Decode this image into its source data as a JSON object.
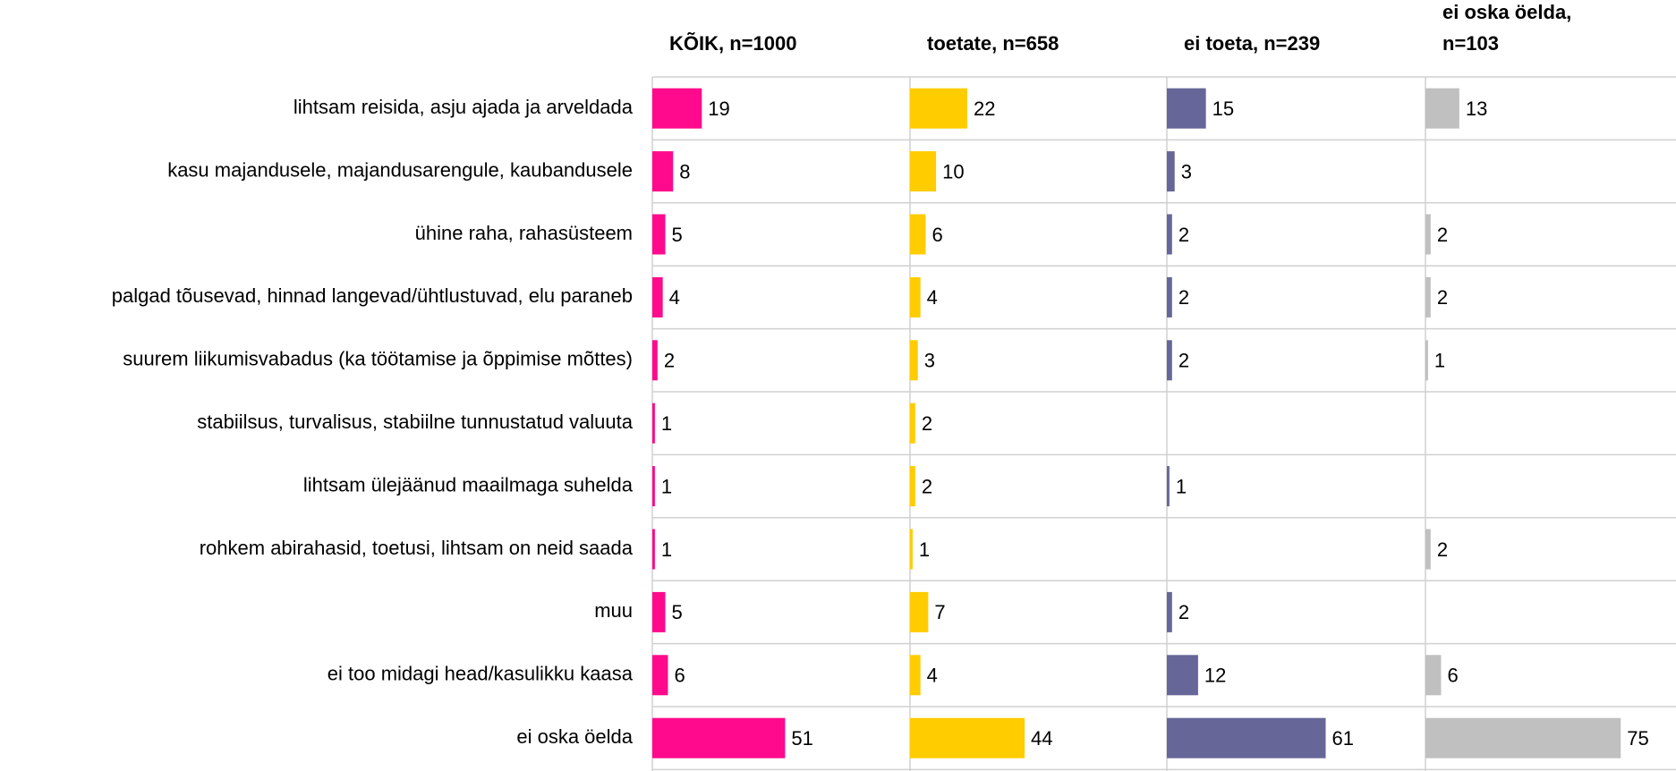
{
  "chart_data": {
    "type": "bar",
    "orientation": "horizontal",
    "categories": [
      "lihtsam reisida, asju ajada ja arveldada",
      "kasu majandusele, majandusarengule, kaubandusele",
      "ühine raha, rahasüsteem",
      "palgad tõusevad, hinnad langevad/ühtlustuvad, elu paraneb",
      "suurem liikumisvabadus (ka töötamise ja õppimise mõttes)",
      "stabiilsus, turvalisus, stabiilne tunnustatud valuuta",
      "lihtsam ülejäänud maailmaga suhelda",
      "rohkem abirahasid, toetusi, lihtsam on neid saada",
      "muu",
      "ei too midagi head/kasulikku kaasa",
      "ei oska öelda"
    ],
    "series": [
      {
        "name": "KÕIK, n=1000",
        "color": "#ff0a8c",
        "values": [
          19,
          8,
          5,
          4,
          2,
          1,
          1,
          1,
          5,
          6,
          51
        ]
      },
      {
        "name": "toetate, n=658",
        "color": "#ffcc00",
        "values": [
          22,
          10,
          6,
          4,
          3,
          2,
          2,
          1,
          7,
          4,
          44
        ]
      },
      {
        "name": "ei toeta, n=239",
        "color": "#666699",
        "values": [
          15,
          3,
          2,
          2,
          2,
          null,
          1,
          null,
          2,
          12,
          61
        ]
      },
      {
        "name": "ei oska öelda, n=103",
        "color": "#c0c0c0",
        "values": [
          13,
          null,
          2,
          2,
          1,
          null,
          null,
          2,
          null,
          6,
          75
        ]
      }
    ]
  }
}
